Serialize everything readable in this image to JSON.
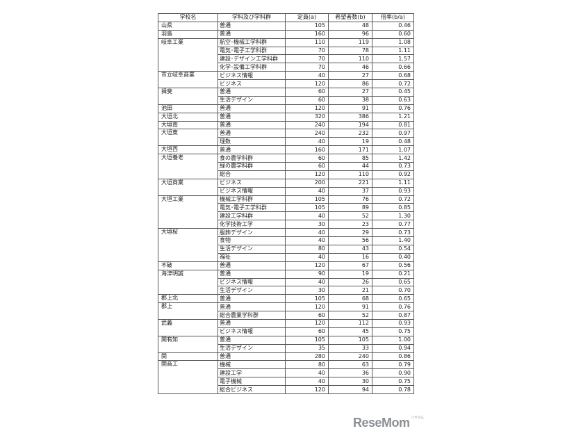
{
  "headers": [
    "学校名",
    "学科及び学科群",
    "定員(a)",
    "希望者数(b)",
    "倍率(b/a)"
  ],
  "schools": [
    {
      "name": "山県",
      "rows": [
        [
          "普通",
          "105",
          "48",
          "0.46"
        ]
      ]
    },
    {
      "name": "羽島",
      "rows": [
        [
          "普通",
          "160",
          "96",
          "0.60"
        ]
      ]
    },
    {
      "name": "岐阜工業",
      "rows": [
        [
          "航空･機械工学科群",
          "110",
          "119",
          "1.08"
        ],
        [
          "電気･電子工学科群",
          "70",
          "78",
          "1.11"
        ],
        [
          "建設･デザイン工学科群",
          "70",
          "110",
          "1.57"
        ],
        [
          "化学･設備工学科群",
          "70",
          "46",
          "0.66"
        ]
      ]
    },
    {
      "name": "市立岐阜商業",
      "rows": [
        [
          "ビジネス情報",
          "40",
          "27",
          "0.68"
        ],
        [
          "ビジネス",
          "120",
          "86",
          "0.72"
        ]
      ]
    },
    {
      "name": "揖斐",
      "rows": [
        [
          "普通",
          "60",
          "27",
          "0.45"
        ],
        [
          "生活デザイン",
          "60",
          "38",
          "0.63"
        ]
      ]
    },
    {
      "name": "池田",
      "rows": [
        [
          "普通",
          "120",
          "91",
          "0.76"
        ]
      ]
    },
    {
      "name": "大垣北",
      "rows": [
        [
          "普通",
          "320",
          "386",
          "1.21"
        ]
      ]
    },
    {
      "name": "大垣南",
      "rows": [
        [
          "普通",
          "240",
          "194",
          "0.81"
        ]
      ]
    },
    {
      "name": "大垣東",
      "rows": [
        [
          "普通",
          "240",
          "232",
          "0.97"
        ],
        [
          "理数",
          "40",
          "19",
          "0.48"
        ]
      ]
    },
    {
      "name": "大垣西",
      "rows": [
        [
          "普通",
          "160",
          "171",
          "1.07"
        ]
      ]
    },
    {
      "name": "大垣養老",
      "rows": [
        [
          "食の農学科群",
          "60",
          "85",
          "1.42"
        ],
        [
          "緑の農学科群",
          "60",
          "44",
          "0.73"
        ],
        [
          "総合",
          "120",
          "110",
          "0.92"
        ]
      ]
    },
    {
      "name": "大垣商業",
      "rows": [
        [
          "ビジネス",
          "200",
          "221",
          "1.11"
        ],
        [
          "ビジネス情報",
          "40",
          "37",
          "0.93"
        ]
      ]
    },
    {
      "name": "大垣工業",
      "rows": [
        [
          "機械工学科群",
          "105",
          "76",
          "0.72"
        ],
        [
          "電気･電子工学科群",
          "105",
          "89",
          "0.85"
        ],
        [
          "建設工学科群",
          "40",
          "52",
          "1.30"
        ],
        [
          "化学技術工学",
          "30",
          "23",
          "0.77"
        ]
      ]
    },
    {
      "name": "大垣桜",
      "rows": [
        [
          "服飾デザイン",
          "40",
          "29",
          "0.73"
        ],
        [
          "食物",
          "40",
          "56",
          "1.40"
        ],
        [
          "生活デザイン",
          "80",
          "43",
          "0.54"
        ],
        [
          "福祉",
          "40",
          "16",
          "0.40"
        ]
      ]
    },
    {
      "name": "不破",
      "rows": [
        [
          "普通",
          "120",
          "67",
          "0.56"
        ]
      ]
    },
    {
      "name": "海津明誠",
      "rows": [
        [
          "普通",
          "90",
          "19",
          "0.21"
        ],
        [
          "ビジネス情報",
          "40",
          "26",
          "0.65"
        ],
        [
          "生活デザイン",
          "30",
          "21",
          "0.70"
        ]
      ]
    },
    {
      "name": "郡上北",
      "rows": [
        [
          "普通",
          "105",
          "68",
          "0.65"
        ]
      ]
    },
    {
      "name": "郡上",
      "rows": [
        [
          "普通",
          "120",
          "91",
          "0.76"
        ],
        [
          "総合農業学科群",
          "60",
          "52",
          "0.87"
        ]
      ]
    },
    {
      "name": "武義",
      "rows": [
        [
          "普通",
          "120",
          "112",
          "0.93"
        ],
        [
          "ビジネス情報",
          "60",
          "45",
          "0.75"
        ]
      ]
    },
    {
      "name": "関有知",
      "rows": [
        [
          "普通",
          "105",
          "105",
          "1.00"
        ],
        [
          "生活デザイン",
          "35",
          "33",
          "0.94"
        ]
      ]
    },
    {
      "name": "関",
      "rows": [
        [
          "普通",
          "280",
          "240",
          "0.86"
        ]
      ]
    },
    {
      "name": "関商工",
      "rows": [
        [
          "機械",
          "80",
          "63",
          "0.79"
        ],
        [
          "建設工学",
          "40",
          "36",
          "0.90"
        ],
        [
          "電子機械",
          "40",
          "30",
          "0.75"
        ],
        [
          "総合ビジネス",
          "120",
          "94",
          "0.78"
        ]
      ]
    }
  ],
  "logo": {
    "text": "ReseMom",
    "subtext": "リセマム"
  }
}
